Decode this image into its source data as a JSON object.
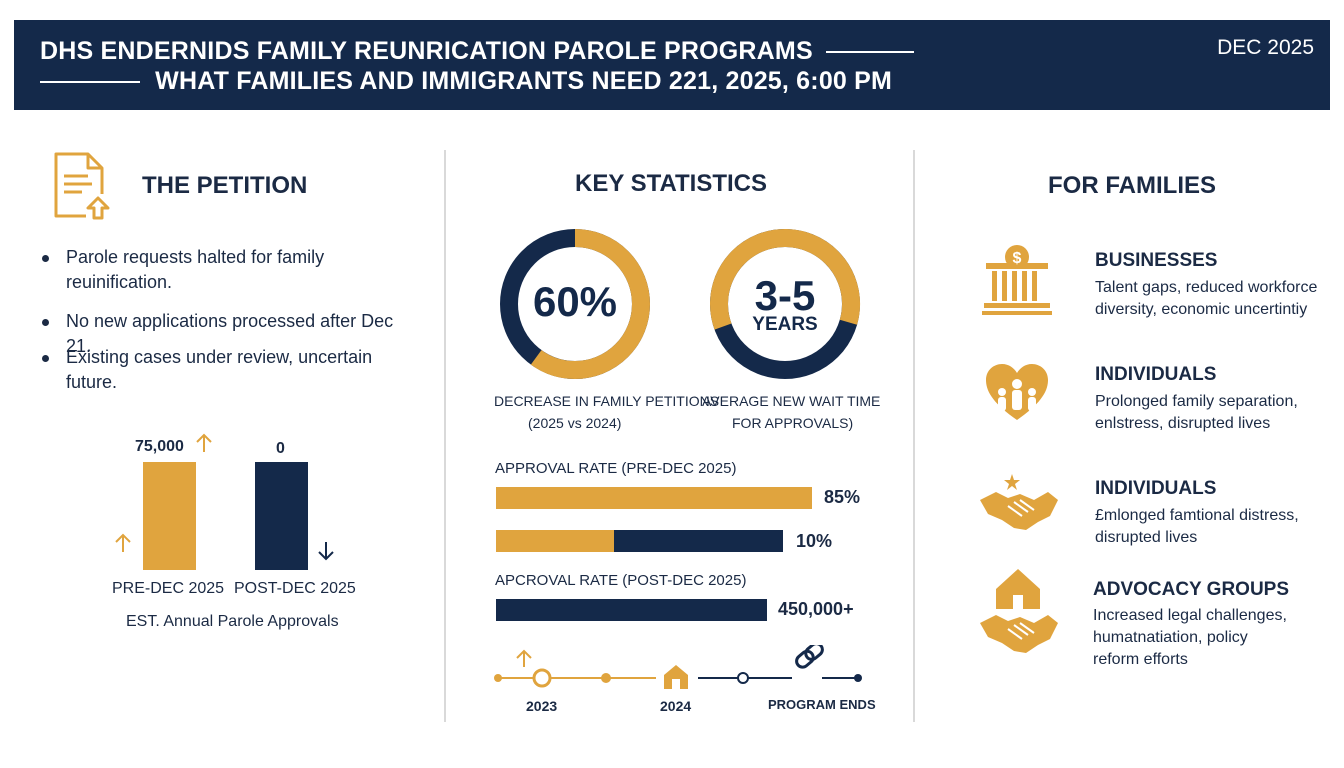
{
  "header": {
    "line1": "DHS ENDERNIDS FAMILY REUNRICATION PAROLE PROGRAMS",
    "line2": "WHAT FAMILIES AND IMMIGRANTS NEED 221, 2025, 6:00 PM",
    "date": "DEC 2025"
  },
  "left": {
    "title": "THE PETITION",
    "icon": "document-upload-icon",
    "bullets": [
      "Parole requests halted for family reuinification.",
      "No new applications processed after Dec 21.",
      "Existing cases under review, uncertain future."
    ],
    "bars": [
      {
        "label": "PRE-DEC 2025",
        "value_label": "75,000",
        "value": 75000,
        "trend": "up"
      },
      {
        "label": "POST-DEC 2025",
        "value_label": "0",
        "value": 0,
        "trend": "down"
      }
    ],
    "caption": "EST. Annual Parole Approvals"
  },
  "center": {
    "title": "KEY STATISTICS",
    "ring1": {
      "value": "60%",
      "fraction": 0.6,
      "caption_line1": "DECREASE IN FAMILY PETITIONS",
      "caption_line2": "(2025 vs 2024)"
    },
    "ring2": {
      "value": "3-5",
      "unit": "YEARS",
      "fraction": 0.6,
      "caption_line1": "AVERAGE NEW WAIT TIME",
      "caption_line2": "FOR APPROVALS)"
    },
    "rates": [
      {
        "label": "APPROVAL RATE (PRE-DEC 2025)",
        "value": "85%",
        "fill": 1.0
      },
      {
        "label": "",
        "value": "10%",
        "fill": 0.4
      },
      {
        "label": "APCROVAL RATE (POST-DEC 2025)",
        "value": "450,000+",
        "fill": 1.0
      }
    ],
    "timeline": [
      "2023",
      "2024",
      "PROGRAM ENDS"
    ]
  },
  "right": {
    "title": "FOR FAMILIES",
    "items": [
      {
        "title": "BUSINESSES",
        "desc": "Talent gaps, reduced workforce diversity, economic uncertintiy",
        "icon": "bank-dollar-icon"
      },
      {
        "title": "INDIVIDUALS",
        "desc": "Prolonged family separation, enlstress, disrupted lives",
        "icon": "family-heart-icon"
      },
      {
        "title": "INDIVIDUALS",
        "desc": "£mlonged famtional distress, disrupted lives",
        "icon": "handshake-icon"
      },
      {
        "title": "ADVOCACY GROUPS",
        "desc": "Increased legal challenges, humatnatiation, policy reform efforts",
        "icon": "house-handshake-icon"
      }
    ]
  },
  "colors": {
    "navy": "#14294a",
    "gold": "#e0a43e",
    "text": "#1b2a44"
  }
}
